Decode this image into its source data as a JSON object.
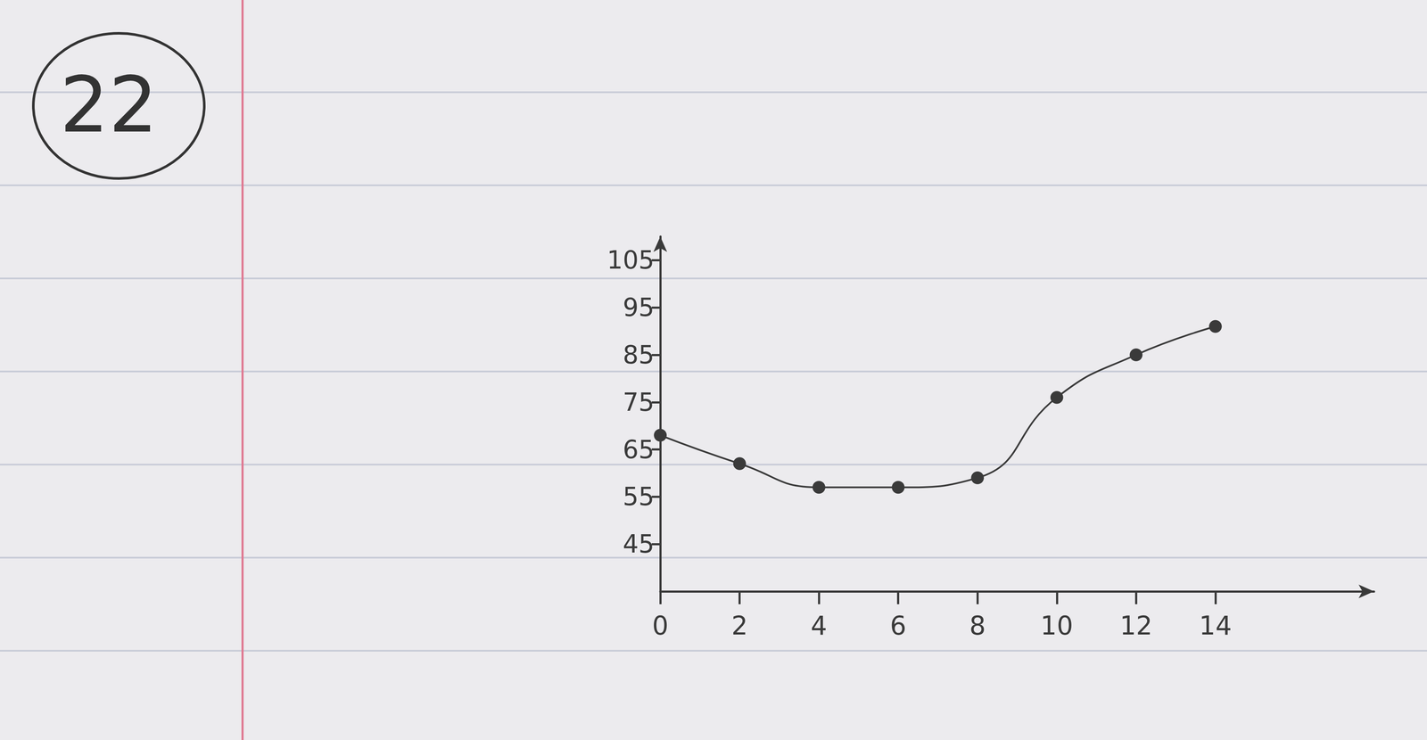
{
  "chart_data": {
    "type": "line",
    "annotation": "22",
    "x": [
      0,
      2,
      4,
      6,
      8,
      10,
      12,
      14
    ],
    "values": [
      68,
      62,
      57,
      57,
      59,
      76,
      85,
      91
    ],
    "xlim": [
      0,
      18
    ],
    "xticks": [
      0,
      2,
      4,
      6,
      8,
      10,
      12,
      14
    ],
    "ylim": [
      35,
      110
    ],
    "yticks": [
      45,
      55,
      65,
      75,
      85,
      95,
      105
    ],
    "color": "#3a3a3a",
    "marker": "circle",
    "line_style": "solid",
    "grid": false
  }
}
